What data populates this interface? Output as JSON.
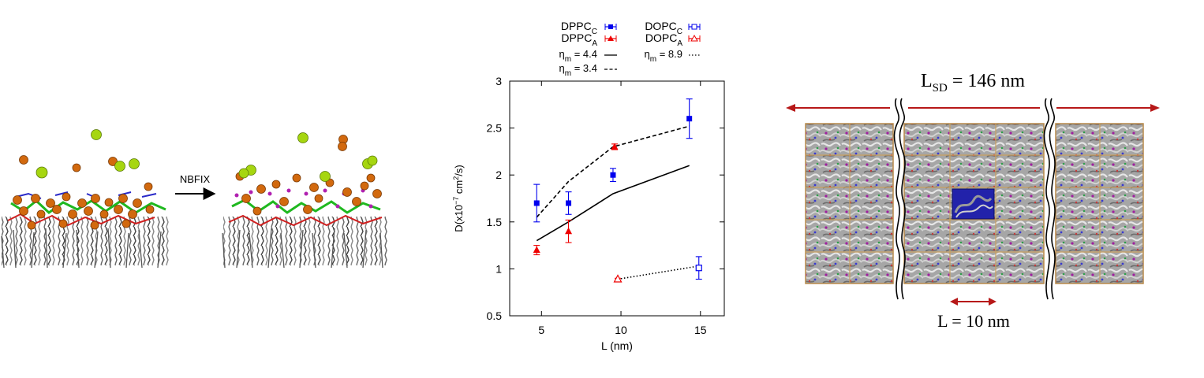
{
  "left_panel": {
    "arrow_label": "NBFIX"
  },
  "chart_data": {
    "type": "scatter",
    "xlabel": "L (nm)",
    "ylabel": "D(x10",
    "ylabel_exp": "−7",
    "ylabel_unit": " cm",
    "ylabel_unit_exp": "2",
    "ylabel_tail": "/s)",
    "xlim": [
      3,
      16.5
    ],
    "ylim": [
      0.5,
      3
    ],
    "xticks": [
      5,
      10,
      15
    ],
    "yticks": [
      0.5,
      1,
      1.5,
      2,
      2.5,
      3
    ],
    "ytick_labels": [
      "0.5",
      "1",
      "1.5",
      "2",
      "2.5",
      "3"
    ],
    "grid": false,
    "legend_position": "top, above plot",
    "series": [
      {
        "name": "DPPC",
        "sub": "C",
        "kind": "points",
        "marker": "square-filled",
        "color": "#0000ee",
        "points": [
          {
            "x": 4.7,
            "y": 1.7,
            "err": 0.2
          },
          {
            "x": 6.7,
            "y": 1.7,
            "err": 0.12
          },
          {
            "x": 9.5,
            "y": 2.0,
            "err": 0.07
          },
          {
            "x": 14.3,
            "y": 2.6,
            "err": 0.21
          }
        ]
      },
      {
        "name": "DPPC",
        "sub": "A",
        "kind": "points",
        "marker": "triangle-filled",
        "color": "#ee0000",
        "points": [
          {
            "x": 4.7,
            "y": 1.2,
            "err": 0.05
          },
          {
            "x": 6.7,
            "y": 1.4,
            "err": 0.12
          },
          {
            "x": 9.6,
            "y": 2.3,
            "err": 0.03
          }
        ]
      },
      {
        "name": "DOPC",
        "sub": "C",
        "kind": "points",
        "marker": "square-open",
        "color": "#0000ee",
        "points": [
          {
            "x": 14.9,
            "y": 1.01,
            "err": 0.12
          }
        ]
      },
      {
        "name": "DOPC",
        "sub": "A",
        "kind": "points",
        "marker": "triangle-open",
        "color": "#ee0000",
        "points": [
          {
            "x": 9.8,
            "y": 0.89,
            "err": 0.01
          }
        ]
      },
      {
        "name": "η",
        "sub": "m",
        "suffix": " = 4.4",
        "kind": "line",
        "dash": "solid",
        "color": "#000000",
        "points": [
          {
            "x": 4.7,
            "y": 1.3
          },
          {
            "x": 6.7,
            "y": 1.5
          },
          {
            "x": 9.5,
            "y": 1.8
          },
          {
            "x": 14.3,
            "y": 2.1
          }
        ]
      },
      {
        "name": "η",
        "sub": "m",
        "suffix": " = 3.4",
        "kind": "line",
        "dash": "dashed",
        "color": "#000000",
        "points": [
          {
            "x": 4.7,
            "y": 1.55
          },
          {
            "x": 6.7,
            "y": 1.93
          },
          {
            "x": 9.5,
            "y": 2.3
          },
          {
            "x": 14.3,
            "y": 2.52
          }
        ]
      },
      {
        "name": "η",
        "sub": "m",
        "suffix": " = 8.9",
        "kind": "line",
        "dash": "dotted",
        "color": "#000000",
        "points": [
          {
            "x": 9.8,
            "y": 0.89
          },
          {
            "x": 14.9,
            "y": 1.03
          }
        ]
      }
    ]
  },
  "right_panel": {
    "top_label": "L",
    "top_label_sub": "SD",
    "top_label_value": " = 146 nm",
    "bottom_label": "L = 10 nm",
    "arrow_color": "#b71818"
  }
}
